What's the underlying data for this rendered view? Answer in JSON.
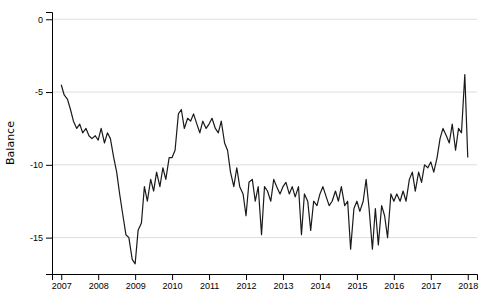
{
  "chart_data": {
    "type": "line",
    "ylabel": "Balance",
    "color": "#1a1a1a",
    "grid": true,
    "xlim": [
      2006.75,
      2018.25
    ],
    "xticks": [
      2007,
      2008,
      2009,
      2010,
      2011,
      2012,
      2013,
      2014,
      2015,
      2016,
      2017,
      2018
    ],
    "ylim": [
      -17.5,
      0.5
    ],
    "yticks": [
      0,
      -5,
      -10,
      -15
    ],
    "x": [
      2007.0,
      2007.08,
      2007.17,
      2007.25,
      2007.33,
      2007.42,
      2007.5,
      2007.58,
      2007.67,
      2007.75,
      2007.83,
      2007.92,
      2008.0,
      2008.08,
      2008.17,
      2008.25,
      2008.33,
      2008.42,
      2008.5,
      2008.58,
      2008.67,
      2008.75,
      2008.83,
      2008.92,
      2009.0,
      2009.08,
      2009.17,
      2009.25,
      2009.33,
      2009.42,
      2009.5,
      2009.58,
      2009.67,
      2009.75,
      2009.83,
      2009.92,
      2010.0,
      2010.08,
      2010.17,
      2010.25,
      2010.33,
      2010.42,
      2010.5,
      2010.58,
      2010.67,
      2010.75,
      2010.83,
      2010.92,
      2011.0,
      2011.08,
      2011.17,
      2011.25,
      2011.33,
      2011.42,
      2011.5,
      2011.58,
      2011.67,
      2011.75,
      2011.83,
      2011.92,
      2012.0,
      2012.08,
      2012.17,
      2012.25,
      2012.33,
      2012.42,
      2012.5,
      2012.58,
      2012.67,
      2012.75,
      2012.83,
      2012.92,
      2013.0,
      2013.08,
      2013.17,
      2013.25,
      2013.33,
      2013.42,
      2013.5,
      2013.58,
      2013.67,
      2013.75,
      2013.83,
      2013.92,
      2014.0,
      2014.08,
      2014.17,
      2014.25,
      2014.33,
      2014.42,
      2014.5,
      2014.58,
      2014.67,
      2014.75,
      2014.83,
      2014.92,
      2015.0,
      2015.08,
      2015.17,
      2015.25,
      2015.33,
      2015.42,
      2015.5,
      2015.58,
      2015.67,
      2015.75,
      2015.83,
      2015.92,
      2016.0,
      2016.08,
      2016.17,
      2016.25,
      2016.33,
      2016.42,
      2016.5,
      2016.58,
      2016.67,
      2016.75,
      2016.83,
      2016.92,
      2017.0,
      2017.08,
      2017.17,
      2017.25,
      2017.33,
      2017.42,
      2017.5,
      2017.58,
      2017.67,
      2017.75,
      2017.83,
      2017.92,
      2018.0
    ],
    "values": [
      -4.5,
      -5.2,
      -5.5,
      -6.2,
      -7.0,
      -7.5,
      -7.2,
      -7.8,
      -7.5,
      -8.0,
      -8.2,
      -8.0,
      -8.3,
      -7.5,
      -8.5,
      -7.8,
      -8.2,
      -9.5,
      -10.5,
      -12.0,
      -13.5,
      -14.8,
      -15.0,
      -16.5,
      -16.8,
      -14.5,
      -14.0,
      -11.5,
      -12.5,
      -11.0,
      -11.8,
      -10.5,
      -11.5,
      -10.2,
      -11.0,
      -9.5,
      -9.5,
      -9.0,
      -6.5,
      -6.2,
      -7.5,
      -6.8,
      -7.0,
      -6.5,
      -7.2,
      -7.8,
      -7.0,
      -7.5,
      -7.2,
      -6.8,
      -7.5,
      -7.8,
      -7.0,
      -8.5,
      -9.0,
      -10.5,
      -11.5,
      -10.2,
      -11.5,
      -12.0,
      -13.5,
      -11.2,
      -11.0,
      -12.5,
      -11.5,
      -14.8,
      -11.5,
      -11.8,
      -12.5,
      -11.0,
      -11.5,
      -12.0,
      -11.5,
      -11.2,
      -12.0,
      -11.5,
      -12.2,
      -11.5,
      -14.8,
      -12.0,
      -12.5,
      -14.5,
      -12.5,
      -12.8,
      -12.0,
      -11.5,
      -12.2,
      -12.8,
      -12.5,
      -11.8,
      -12.5,
      -11.5,
      -12.8,
      -12.5,
      -15.8,
      -13.0,
      -12.5,
      -13.2,
      -12.5,
      -11.0,
      -13.0,
      -15.8,
      -13.0,
      -15.5,
      -12.8,
      -13.5,
      -15.0,
      -12.0,
      -12.5,
      -12.0,
      -12.5,
      -11.8,
      -12.5,
      -11.0,
      -10.5,
      -11.8,
      -10.5,
      -11.2,
      -10.0,
      -10.2,
      -9.8,
      -10.5,
      -9.5,
      -8.2,
      -7.5,
      -8.0,
      -8.5,
      -7.2,
      -9.0,
      -7.5,
      -7.8,
      -3.8,
      -9.5
    ]
  }
}
